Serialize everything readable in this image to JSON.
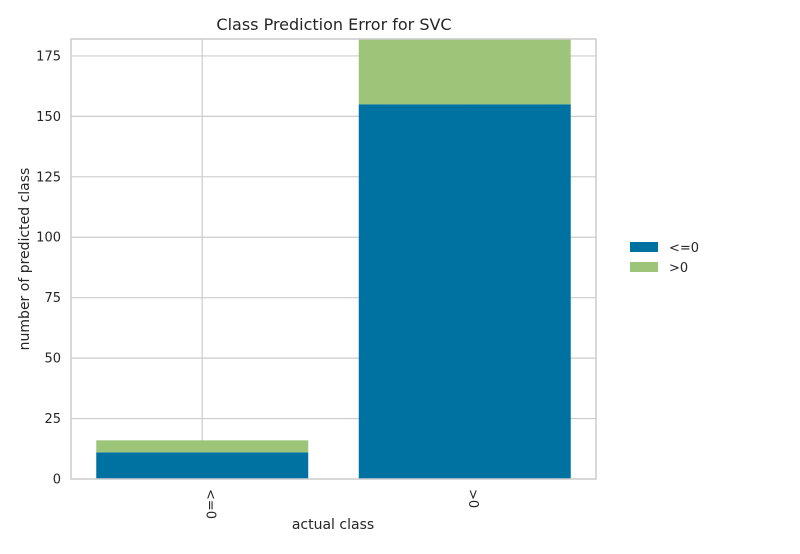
{
  "chart_data": {
    "type": "bar",
    "stacked": true,
    "title": "Class Prediction Error for SVC",
    "xlabel": "actual class",
    "ylabel": "number of predicted class",
    "categories": [
      "<=0",
      ">0"
    ],
    "series": [
      {
        "name": "<=0",
        "values": [
          11,
          155
        ],
        "color": "#0072a2"
      },
      {
        "name": ">0",
        "values": [
          5,
          27
        ],
        "color": "#9dc57a"
      }
    ],
    "ylim": [
      0,
      182
    ],
    "yticks": [
      0,
      25,
      50,
      75,
      100,
      125,
      150,
      175
    ],
    "grid": true,
    "legend_position": "right",
    "gridline_color": "#cccccc",
    "axes_edge_color": "#cccccc"
  }
}
